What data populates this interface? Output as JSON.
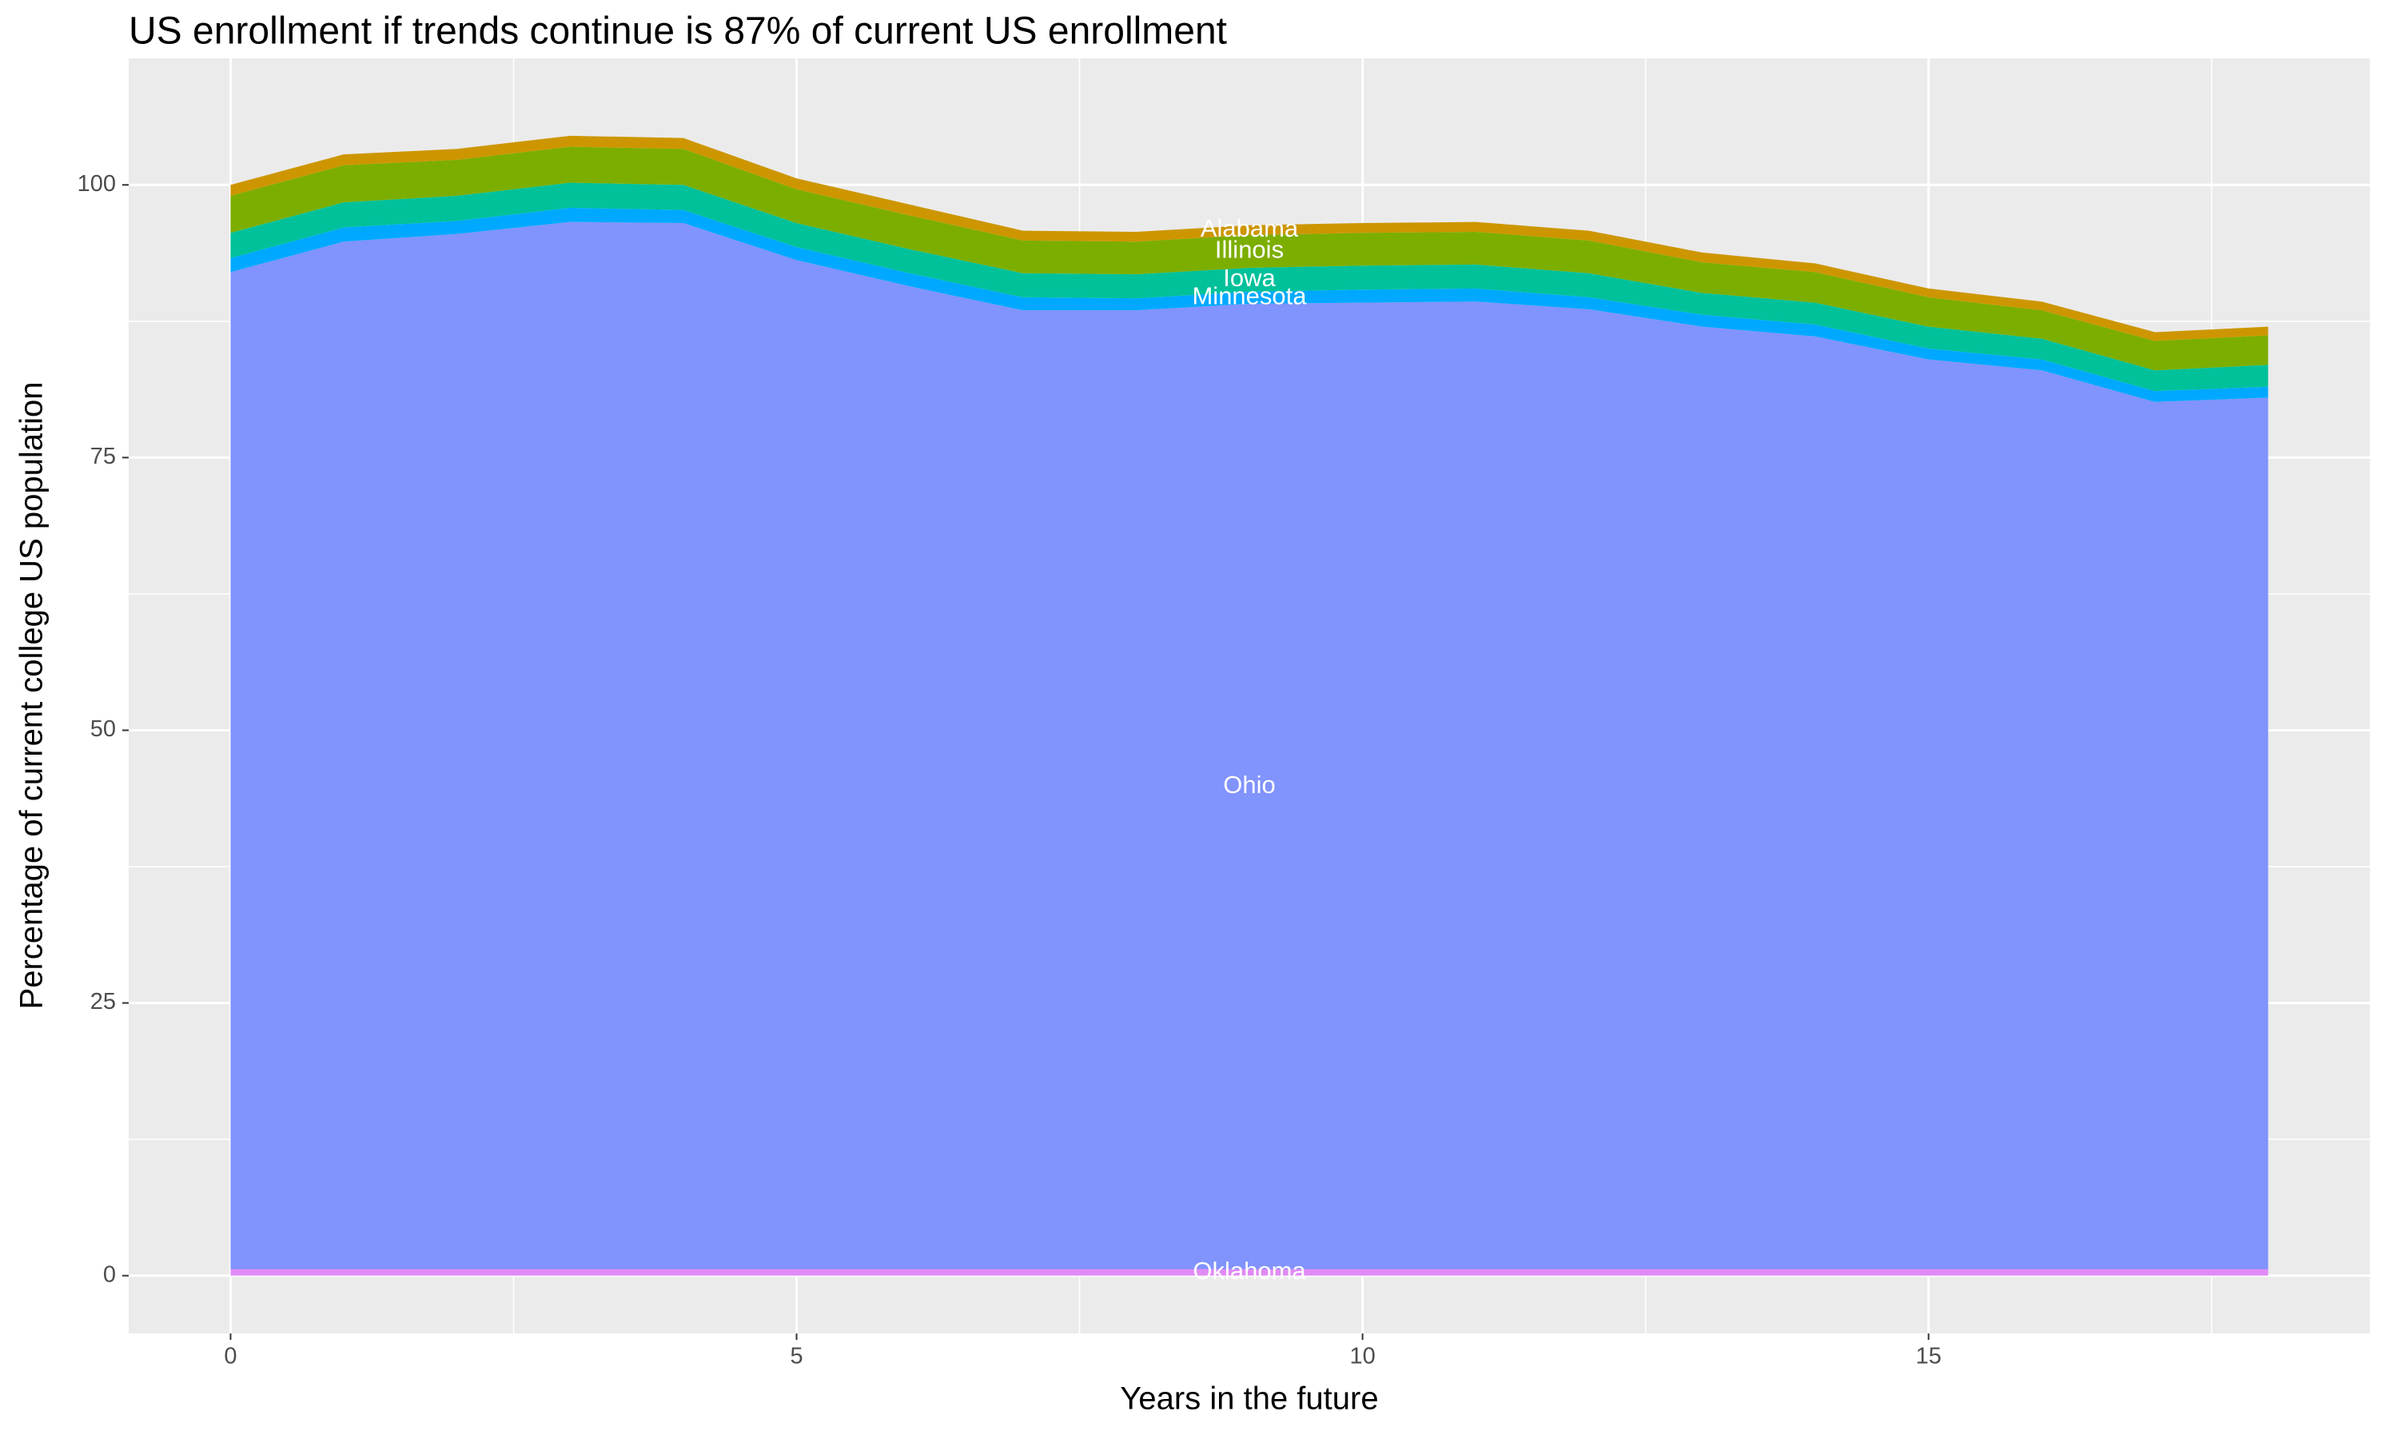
{
  "chart_data": {
    "type": "stacked_area",
    "title": "US enrollment if trends continue is 87% of current US enrollment",
    "x_label": "Years in the future",
    "y_label": "Percentage of current college US population",
    "x": [
      0,
      1,
      2,
      3,
      4,
      5,
      6,
      7,
      8,
      9,
      10,
      11,
      12,
      13,
      14,
      15,
      16,
      17,
      18
    ],
    "series": [
      {
        "name": "Oklahoma",
        "color": "#e08bf5",
        "values": [
          0.6,
          0.6,
          0.6,
          0.6,
          0.6,
          0.6,
          0.6,
          0.6,
          0.6,
          0.6,
          0.6,
          0.6,
          0.6,
          0.6,
          0.6,
          0.6,
          0.6,
          0.6,
          0.6
        ]
      },
      {
        "name": "Ohio",
        "color": "#8193fc",
        "values": [
          91.4,
          94.2,
          94.9,
          96.0,
          95.9,
          92.5,
          90.1,
          87.9,
          87.9,
          88.5,
          88.6,
          88.7,
          88.0,
          86.4,
          85.5,
          83.4,
          82.4,
          79.5,
          79.9
        ]
      },
      {
        "name": "Minnesota",
        "color": "#00a9ff",
        "values": [
          1.3,
          1.3,
          1.2,
          1.3,
          1.2,
          1.2,
          1.2,
          1.2,
          1.1,
          1.1,
          1.2,
          1.2,
          1.1,
          1.1,
          1.1,
          1.0,
          1.0,
          1.0,
          1.0
        ]
      },
      {
        "name": "Iowa",
        "color": "#00c19a",
        "values": [
          2.3,
          2.3,
          2.3,
          2.3,
          2.3,
          2.2,
          2.2,
          2.2,
          2.2,
          2.2,
          2.2,
          2.2,
          2.2,
          2.0,
          2.0,
          2.0,
          1.9,
          1.9,
          2.0
        ]
      },
      {
        "name": "Illinois",
        "color": "#7cae00",
        "values": [
          3.4,
          3.4,
          3.3,
          3.3,
          3.3,
          3.1,
          3.1,
          3.0,
          3.0,
          3.0,
          3.0,
          3.0,
          3.0,
          2.8,
          2.8,
          2.7,
          2.6,
          2.7,
          2.7
        ]
      },
      {
        "name": "Alabama",
        "color": "#cd9600",
        "values": [
          1.0,
          1.0,
          1.0,
          1.0,
          1.0,
          1.0,
          1.0,
          0.9,
          0.9,
          0.9,
          0.9,
          0.9,
          0.9,
          0.9,
          0.8,
          0.8,
          0.8,
          0.8,
          0.8
        ]
      }
    ],
    "xlim": [
      -0.9,
      18.9
    ],
    "ylim": [
      -5.3,
      111.6
    ],
    "xticks": [
      0,
      5,
      10,
      15
    ],
    "yticks": [
      0,
      25,
      50,
      75,
      100
    ],
    "grid": true
  }
}
